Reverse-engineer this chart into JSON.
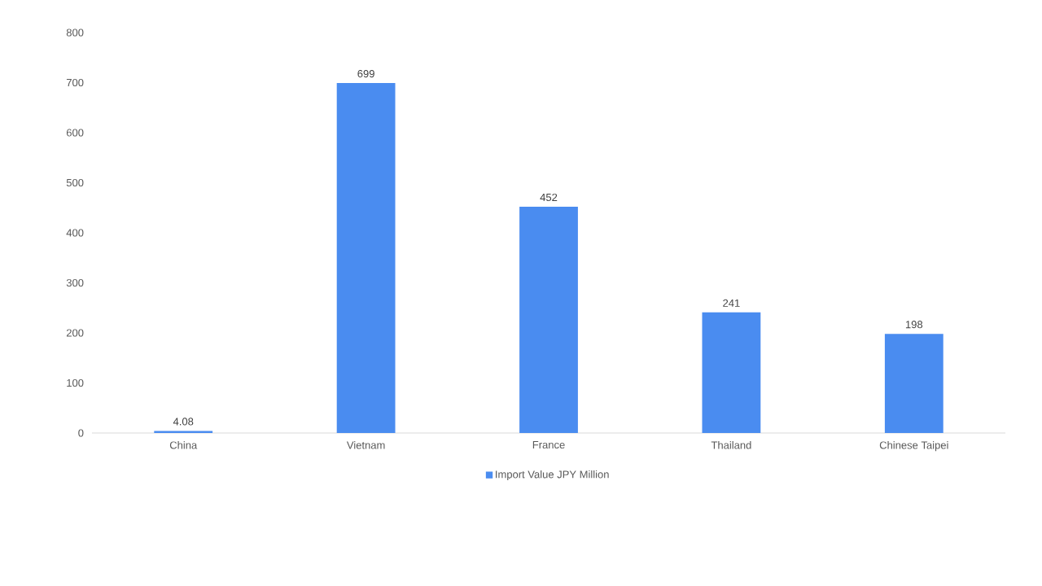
{
  "chart_data": {
    "type": "bar",
    "categories": [
      "China",
      "Vietnam",
      "France",
      "Thailand",
      "Chinese Taipei"
    ],
    "series": [
      {
        "name": "Import Value JPY Million",
        "color": "#4a8cf0",
        "values": [
          4.08,
          699,
          452,
          241,
          198
        ]
      }
    ],
    "ylim": [
      0,
      800
    ],
    "yticks": [
      0,
      100,
      200,
      300,
      400,
      500,
      600,
      700,
      800
    ],
    "data_labels": true,
    "legend": "bottom"
  }
}
